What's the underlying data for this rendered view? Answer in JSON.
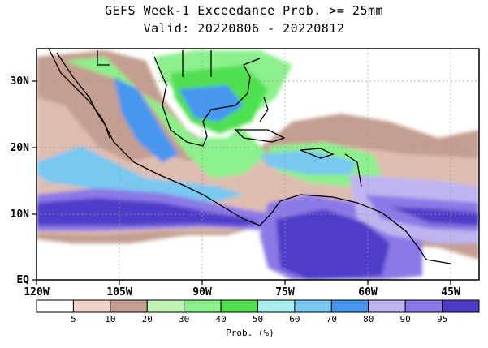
{
  "title": "GEFS Week-1 Exceedance Prob. >= 25mm",
  "subtitle": "Valid: 20220806 - 20220812",
  "colorbar": {
    "label": "Prob. (%)",
    "ticks": [
      "5",
      "10",
      "20",
      "30",
      "40",
      "50",
      "60",
      "70",
      "80",
      "90",
      "95"
    ],
    "colors": [
      "#ffffff",
      "#f0d2c8",
      "#c49e90",
      "#bef5b4",
      "#8cf08c",
      "#50e050",
      "#a8f0f0",
      "#78c8f0",
      "#4696f0",
      "#c0b4f0",
      "#8c78e6",
      "#4e3cc8"
    ]
  },
  "axes": {
    "lon_labels": [
      "120W",
      "105W",
      "90W",
      "75W",
      "60W",
      "45W"
    ],
    "lat_labels": [
      "30N",
      "20N",
      "10N",
      "EQ"
    ]
  },
  "map_data": {
    "extent": {
      "lon_min": -120,
      "lon_max": -40,
      "lat_min": 0,
      "lat_max": 35
    },
    "graticule": {
      "lon_step": 15,
      "lat_step": 10
    },
    "bands": [
      {
        "name": "itcz-pacific",
        "level": 11,
        "lat_center": 10,
        "lat_width": 4
      },
      {
        "name": "itcz-atlantic",
        "level": 9,
        "lat_center": 11,
        "lat_width": 3
      }
    ]
  }
}
